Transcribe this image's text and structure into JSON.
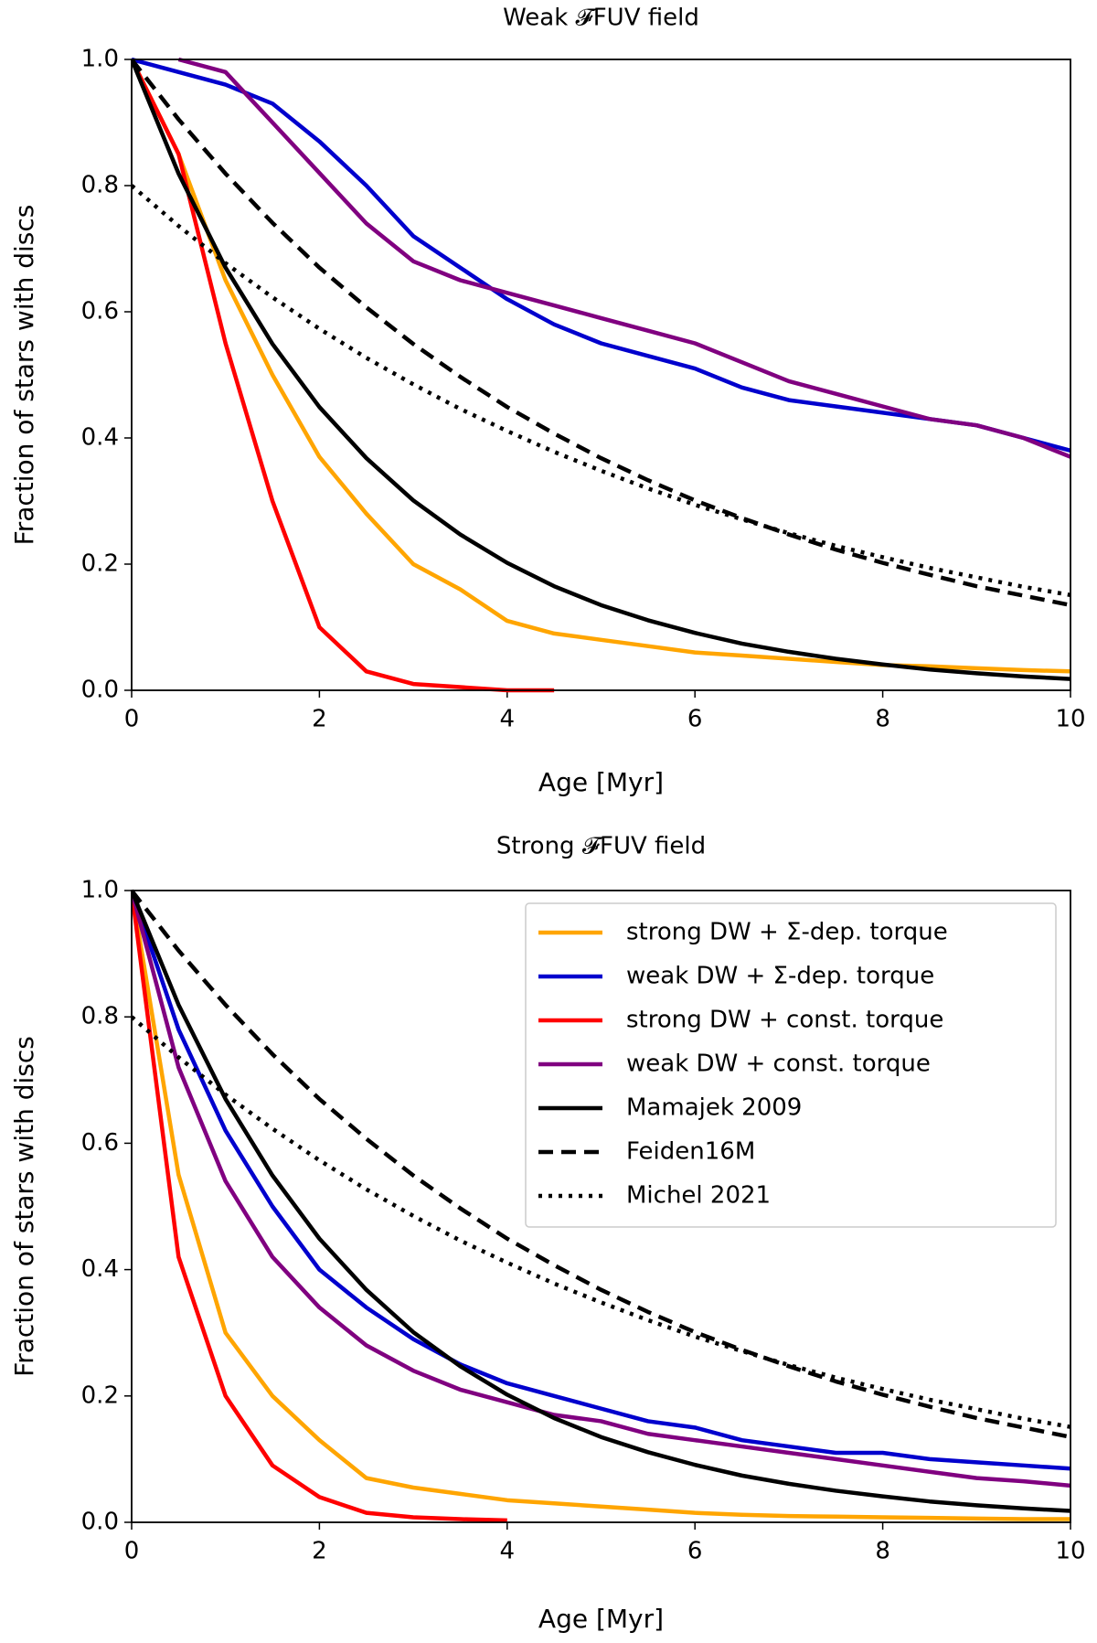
{
  "chart_data": [
    {
      "type": "line",
      "title": "Weak 𝓕FUV field",
      "xlabel": "Age [Myr]",
      "ylabel": "Fraction of stars with discs",
      "x": [
        0,
        0.5,
        1,
        1.5,
        2,
        2.5,
        3,
        3.5,
        4,
        4.5,
        5,
        5.5,
        6,
        6.5,
        7,
        7.5,
        8,
        8.5,
        9,
        9.5,
        10
      ],
      "xlim": [
        0,
        10
      ],
      "xticks": [
        0,
        2,
        4,
        6,
        8,
        10
      ],
      "ylim": [
        0,
        1
      ],
      "yticks": [
        {
          "value": 0,
          "label": "0.0"
        },
        {
          "value": 0.2,
          "label": "0.2"
        },
        {
          "value": 0.4,
          "label": "0.4"
        },
        {
          "value": 0.6,
          "label": "0.6"
        },
        {
          "value": 0.8,
          "label": "0.8"
        },
        {
          "value": 1,
          "label": "1.0"
        }
      ],
      "series": [
        {
          "color": "#ffa500",
          "linestyle": "solid",
          "values": [
            1,
            0.85,
            0.65,
            0.5,
            0.37,
            0.28,
            0.2,
            0.16,
            0.11,
            0.09,
            0.08,
            0.07,
            0.06,
            0.055,
            0.05,
            0.045,
            0.04,
            0.038,
            0.035,
            0.032,
            0.03
          ]
        },
        {
          "color": "#0000cd",
          "linestyle": "solid",
          "values": [
            1,
            0.98,
            0.96,
            0.93,
            0.87,
            0.8,
            0.72,
            0.67,
            0.62,
            0.58,
            0.55,
            0.53,
            0.51,
            0.48,
            0.46,
            0.45,
            0.44,
            0.43,
            0.42,
            0.4,
            0.38
          ]
        },
        {
          "color": "#ff0000",
          "linestyle": "solid",
          "values": [
            1,
            0.85,
            0.55,
            0.3,
            0.1,
            0.03,
            0.01,
            0.005,
            0,
            0,
            null,
            null,
            null,
            null,
            null,
            null,
            null,
            null,
            null,
            null,
            null
          ]
        },
        {
          "color": "#800080",
          "linestyle": "solid",
          "values": [
            null,
            1,
            0.98,
            0.9,
            0.82,
            0.74,
            0.68,
            0.65,
            0.63,
            0.61,
            0.59,
            0.57,
            0.55,
            0.52,
            0.49,
            0.47,
            0.45,
            0.43,
            0.42,
            0.4,
            0.37
          ]
        },
        {
          "color": "#000000",
          "linestyle": "solid",
          "values": [
            1,
            0.819,
            0.67,
            0.549,
            0.449,
            0.368,
            0.301,
            0.247,
            0.202,
            0.165,
            0.135,
            0.111,
            0.091,
            0.074,
            0.061,
            0.05,
            0.041,
            0.033,
            0.027,
            0.022,
            0.018
          ]
        },
        {
          "color": "#000000",
          "linestyle": "dashed",
          "values": [
            1,
            0.905,
            0.819,
            0.741,
            0.67,
            0.607,
            0.549,
            0.497,
            0.449,
            0.407,
            0.368,
            0.333,
            0.301,
            0.273,
            0.247,
            0.223,
            0.202,
            0.183,
            0.165,
            0.15,
            0.135
          ]
        },
        {
          "color": "#000000",
          "linestyle": "dotted",
          "values": [
            0.8,
            0.736,
            0.677,
            0.623,
            0.573,
            0.527,
            0.485,
            0.446,
            0.411,
            0.378,
            0.348,
            0.32,
            0.294,
            0.271,
            0.249,
            0.229,
            0.211,
            0.194,
            0.179,
            0.164,
            0.151
          ]
        }
      ]
    },
    {
      "type": "line",
      "title": "Strong 𝓕FUV field",
      "xlabel": "Age [Myr]",
      "ylabel": "Fraction of stars with discs",
      "x": [
        0,
        0.5,
        1,
        1.5,
        2,
        2.5,
        3,
        3.5,
        4,
        4.5,
        5,
        5.5,
        6,
        6.5,
        7,
        7.5,
        8,
        8.5,
        9,
        9.5,
        10
      ],
      "xlim": [
        0,
        10
      ],
      "xticks": [
        0,
        2,
        4,
        6,
        8,
        10
      ],
      "ylim": [
        0,
        1
      ],
      "yticks": [
        {
          "value": 0,
          "label": "0.0"
        },
        {
          "value": 0.2,
          "label": "0.2"
        },
        {
          "value": 0.4,
          "label": "0.4"
        },
        {
          "value": 0.6,
          "label": "0.6"
        },
        {
          "value": 0.8,
          "label": "0.8"
        },
        {
          "value": 1,
          "label": "1.0"
        }
      ],
      "legend": "upper right",
      "series": [
        {
          "name": "strong DW + Σ-dep. torque",
          "color": "#ffa500",
          "linestyle": "solid",
          "values": [
            1,
            0.55,
            0.3,
            0.2,
            0.13,
            0.07,
            0.055,
            0.045,
            0.035,
            0.03,
            0.025,
            0.02,
            0.015,
            0.012,
            0.01,
            0.009,
            0.008,
            0.007,
            0.006,
            0.005,
            0.005
          ]
        },
        {
          "name": "weak DW + Σ-dep. torque",
          "color": "#0000cd",
          "linestyle": "solid",
          "values": [
            1,
            0.78,
            0.62,
            0.5,
            0.4,
            0.34,
            0.29,
            0.25,
            0.22,
            0.2,
            0.18,
            0.16,
            0.15,
            0.13,
            0.12,
            0.11,
            0.11,
            0.1,
            0.095,
            0.09,
            0.085
          ]
        },
        {
          "name": "strong DW + const. torque",
          "color": "#ff0000",
          "linestyle": "solid",
          "values": [
            1,
            0.42,
            0.2,
            0.09,
            0.04,
            0.015,
            0.008,
            0.005,
            0.003,
            null,
            null,
            null,
            null,
            null,
            null,
            null,
            null,
            null,
            null,
            null,
            null
          ]
        },
        {
          "name": "weak DW + const. torque",
          "color": "#800080",
          "linestyle": "solid",
          "values": [
            1,
            0.72,
            0.54,
            0.42,
            0.34,
            0.28,
            0.24,
            0.21,
            0.19,
            0.17,
            0.16,
            0.14,
            0.13,
            0.12,
            0.11,
            0.1,
            0.09,
            0.08,
            0.07,
            0.065,
            0.058
          ]
        },
        {
          "name": "Mamajek 2009",
          "color": "#000000",
          "linestyle": "solid",
          "values": [
            1,
            0.819,
            0.67,
            0.549,
            0.449,
            0.368,
            0.301,
            0.247,
            0.202,
            0.165,
            0.135,
            0.111,
            0.091,
            0.074,
            0.061,
            0.05,
            0.041,
            0.033,
            0.027,
            0.022,
            0.018
          ]
        },
        {
          "name": "Feiden16M",
          "color": "#000000",
          "linestyle": "dashed",
          "values": [
            1,
            0.905,
            0.819,
            0.741,
            0.67,
            0.607,
            0.549,
            0.497,
            0.449,
            0.407,
            0.368,
            0.333,
            0.301,
            0.273,
            0.247,
            0.223,
            0.202,
            0.183,
            0.165,
            0.15,
            0.135
          ]
        },
        {
          "name": "Michel 2021",
          "color": "#000000",
          "linestyle": "dotted",
          "values": [
            0.8,
            0.736,
            0.677,
            0.623,
            0.573,
            0.527,
            0.485,
            0.446,
            0.411,
            0.378,
            0.348,
            0.32,
            0.294,
            0.271,
            0.249,
            0.229,
            0.211,
            0.194,
            0.179,
            0.164,
            0.151
          ]
        }
      ]
    }
  ]
}
